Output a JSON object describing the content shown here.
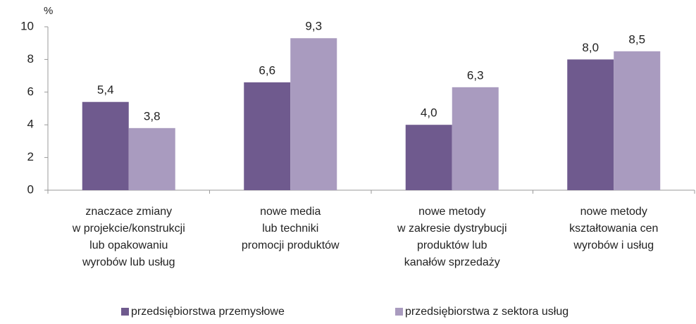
{
  "chart_data": {
    "type": "bar",
    "y_label": "%",
    "categories": [
      [
        "znaczace zmiany",
        "w projekcie/konstrukcji",
        "lub opakowaniu",
        "wyrobów lub usług"
      ],
      [
        "nowe media",
        "lub techniki",
        "promocji produktów"
      ],
      [
        "nowe metody",
        "w zakresie dystrybucji",
        "produktów lub",
        "kanałów sprzedaży"
      ],
      [
        "nowe metody",
        "kształtowania cen",
        "wyrobów i usług"
      ]
    ],
    "series": [
      {
        "name": "przedsiębiorstwa przemysłowe",
        "color": "#6f5a8e",
        "values": [
          5.4,
          6.6,
          4.0,
          8.0
        ],
        "value_labels": [
          "5,4",
          "6,6",
          "4,0",
          "8,0"
        ]
      },
      {
        "name": "przedsiębiorstwa z sektora usług",
        "color": "#a99bbf",
        "values": [
          3.8,
          9.3,
          6.3,
          8.5
        ],
        "value_labels": [
          "3,8",
          "9,3",
          "6,3",
          "8,5"
        ]
      }
    ],
    "ylim": [
      0,
      10
    ],
    "yticks": [
      0,
      2,
      4,
      6,
      8,
      10
    ],
    "grid": false
  }
}
